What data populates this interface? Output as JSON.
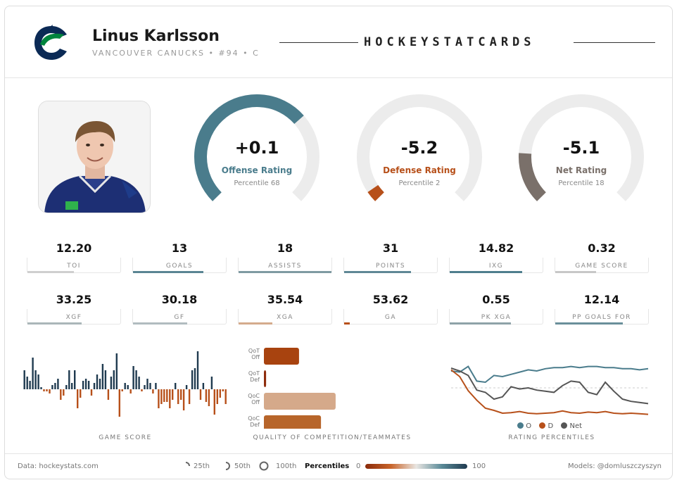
{
  "header": {
    "player_name": "Linus Karlsson",
    "subtitle": "VANCOUVER CANUCKS • #94 • C",
    "brand": "HOCKEYSTATCARDS"
  },
  "colors": {
    "offense": "#4a7c8c",
    "defense": "#b7501a",
    "net": "#7a706a",
    "track": "#ececec"
  },
  "ratings": [
    {
      "value": "+0.1",
      "label": "Offense Rating",
      "percentile_text": "Percentile 68",
      "percentile": 68,
      "color": "#4a7c8c"
    },
    {
      "value": "-5.2",
      "label": "Defense Rating",
      "percentile_text": "Percentile 2",
      "percentile": 2,
      "color": "#b7501a"
    },
    {
      "value": "-5.1",
      "label": "Net Rating",
      "percentile_text": "Percentile 18",
      "percentile": 18,
      "color": "#7a706a"
    }
  ],
  "stats_row1": [
    {
      "value": "12.20",
      "label": "TOI",
      "pct": 50,
      "color": "#cfcfcf"
    },
    {
      "value": "13",
      "label": "GOALS",
      "pct": 76,
      "color": "#5a8593"
    },
    {
      "value": "18",
      "label": "ASSISTS",
      "pct": 100,
      "color": "#7f9aa2"
    },
    {
      "value": "31",
      "label": "POINTS",
      "pct": 72,
      "color": "#5f8895"
    },
    {
      "value": "14.82",
      "label": "IXG",
      "pct": 78,
      "color": "#4f7e8d"
    },
    {
      "value": "0.32",
      "label": "GAME SCORE",
      "pct": 44,
      "color": "#c7c7c7"
    }
  ],
  "stats_row2": [
    {
      "value": "33.25",
      "label": "XGF",
      "pct": 58,
      "color": "#aab6b9"
    },
    {
      "value": "30.18",
      "label": "GF",
      "pct": 58,
      "color": "#b1bcbf"
    },
    {
      "value": "35.54",
      "label": "XGA",
      "pct": 36,
      "color": "#d4ab8c"
    },
    {
      "value": "53.62",
      "label": "GA",
      "pct": 6,
      "color": "#b7501a"
    },
    {
      "value": "0.55",
      "label": "PK XGA",
      "pct": 66,
      "color": "#8ea2a8"
    },
    {
      "value": "12.14",
      "label": "PP GOALS FOR",
      "pct": 73,
      "color": "#6a8f9a"
    }
  ],
  "captions": {
    "game_score": "GAME SCORE",
    "competition": "QUALITY OF COMPETITION/TEAMMATES",
    "percentiles": "RATING PERCENTILES"
  },
  "chart_data": [
    {
      "type": "bar",
      "title": "GAME SCORE",
      "values": [
        0.9,
        0.6,
        0.4,
        1.5,
        0.9,
        0.7,
        0.1,
        -0.1,
        -0.1,
        -0.2,
        0.2,
        0.3,
        0.5,
        -0.5,
        -0.3,
        0.2,
        0.9,
        0.3,
        0.9,
        -0.9,
        -0.4,
        0.4,
        0.5,
        0.4,
        -0.3,
        0.3,
        0.7,
        0.5,
        1.2,
        0.9,
        -0.5,
        0.6,
        0.9,
        1.7,
        -1.3,
        -0.1,
        0.3,
        0.2,
        -0.2,
        1.1,
        0.9,
        0.6,
        -0.1,
        0.2,
        0.5,
        0.3,
        -0.2,
        0.3,
        -0.9,
        -0.7,
        -0.6,
        -0.6,
        -0.9,
        -0.5,
        0.3,
        -0.7,
        -0.5,
        -1.0,
        0.2,
        -0.7,
        0.9,
        1.0,
        1.8,
        -0.5,
        0.3,
        -0.6,
        -0.8,
        0.6,
        -1.2,
        -0.7,
        -0.4,
        -0.1,
        -0.7
      ],
      "ylim": [
        -2,
        2
      ],
      "positive_color": "#1f3a4f",
      "negative_color": "#b7501a"
    },
    {
      "type": "bar",
      "title": "QUALITY OF COMPETITION/TEAMMATES",
      "categories": [
        "QoT Off",
        "QoT Def",
        "QoC Off",
        "QoC Def"
      ],
      "values": [
        48,
        3,
        98,
        78
      ],
      "colors": [
        "#a8430f",
        "#8e2c0c",
        "#d5a98a",
        "#b7652a"
      ],
      "xlim": [
        0,
        100
      ]
    },
    {
      "type": "line",
      "title": "RATING PERCENTILES",
      "ylim": [
        0,
        100
      ],
      "reference_line": 50,
      "series": [
        {
          "name": "O",
          "color": "#4a7c8c",
          "values": [
            80,
            78,
            88,
            62,
            60,
            72,
            70,
            74,
            78,
            82,
            80,
            84,
            86,
            86,
            88,
            86,
            88,
            88,
            86,
            86,
            84,
            84,
            82,
            84
          ]
        },
        {
          "name": "D",
          "color": "#b7501a",
          "values": [
            82,
            70,
            45,
            28,
            14,
            10,
            5,
            6,
            8,
            5,
            4,
            5,
            6,
            9,
            6,
            5,
            7,
            6,
            8,
            5,
            4,
            5,
            4,
            3
          ]
        },
        {
          "name": "Net",
          "color": "#555555",
          "values": [
            85,
            80,
            72,
            46,
            42,
            30,
            34,
            52,
            48,
            50,
            46,
            44,
            42,
            54,
            62,
            60,
            42,
            38,
            60,
            44,
            30,
            26,
            24,
            22
          ]
        }
      ],
      "legend": [
        "O",
        "D",
        "Net"
      ]
    }
  ],
  "footer": {
    "source": "Data: hockeystats.com",
    "legend_25": "25th",
    "legend_50": "50th",
    "legend_100": "100th",
    "percentiles_label": "Percentiles",
    "scale_min": "0",
    "scale_max": "100",
    "models": "Models: @domluszczyszyn"
  }
}
